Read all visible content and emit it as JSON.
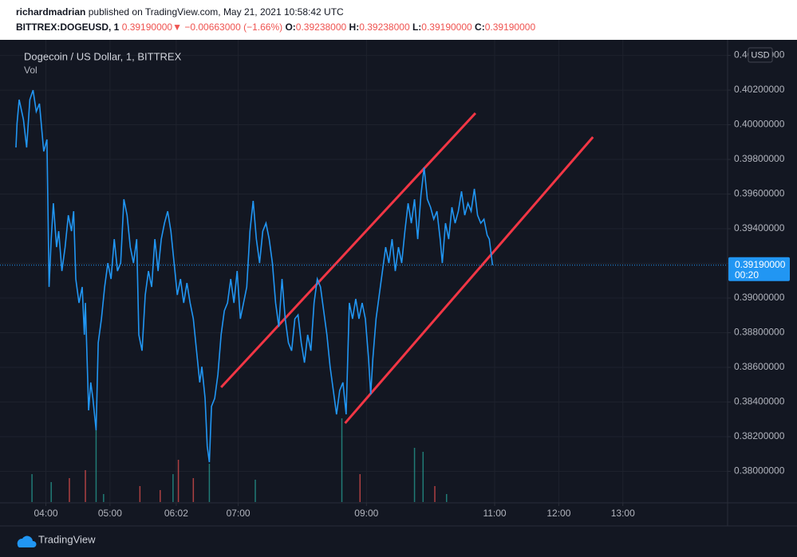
{
  "header": {
    "publisher": "richardmadrian",
    "published": "published on TradingView.com, May 21, 2021 10:58:42 UTC"
  },
  "symbol_bar": {
    "symbol": "BITTREX:DOGEUSD, 1",
    "last": "0.39190000",
    "arrow": "▼",
    "change": "−0.00663000 (−1.66%)",
    "ohlc": [
      {
        "label": "O:",
        "value": "0.39238000"
      },
      {
        "label": "H:",
        "value": "0.39238000"
      },
      {
        "label": "L:",
        "value": "0.39190000"
      },
      {
        "label": "C:",
        "value": "0.39190000"
      }
    ]
  },
  "chart_data": {
    "type": "line",
    "title": "Dogecoin / US Dollar, 1, BITTREX",
    "volume_label": "Vol",
    "currency": "USD",
    "color": "#2196f3",
    "grid": true,
    "x": [
      212,
      213,
      215,
      219,
      222,
      225,
      228,
      231,
      234,
      238,
      241,
      243,
      245,
      247,
      250,
      252,
      255,
      258,
      261,
      264,
      266,
      268,
      271,
      274,
      276,
      277,
      280,
      282,
      284,
      287,
      289,
      292,
      295,
      298,
      301,
      304,
      307,
      310,
      313,
      316,
      319,
      322,
      325,
      327,
      330,
      333,
      336,
      339,
      342,
      345,
      348,
      351,
      354,
      357,
      360,
      363,
      366,
      369,
      372,
      375,
      378,
      381,
      384,
      386,
      389,
      391,
      393,
      395,
      398,
      401,
      404,
      407,
      410,
      413,
      416,
      419,
      422,
      425,
      428,
      431,
      434,
      437,
      440,
      443,
      446,
      449,
      452,
      455,
      458,
      461,
      464,
      467,
      470,
      473,
      476,
      479,
      482,
      485,
      488,
      491,
      494,
      497,
      500,
      503,
      506,
      509,
      512,
      515,
      518,
      521,
      524,
      527,
      530,
      533,
      536,
      539,
      542,
      544,
      546,
      549,
      552,
      555,
      558,
      561,
      564,
      567,
      570,
      573,
      576,
      579,
      582,
      585,
      588,
      591,
      594,
      597,
      600,
      603,
      606,
      609,
      611,
      614,
      617,
      620,
      623,
      626,
      629,
      632,
      635,
      638,
      641,
      644,
      647,
      650,
      653,
      655,
      658
    ],
    "values": [
      0.39869,
      0.40007,
      0.40145,
      0.4003,
      0.39869,
      0.40145,
      0.402,
      0.40076,
      0.40122,
      0.39846,
      0.39915,
      0.39064,
      0.3934,
      0.39547,
      0.39294,
      0.39386,
      0.39156,
      0.39294,
      0.39478,
      0.39386,
      0.39501,
      0.3911,
      0.38972,
      0.39064,
      0.38788,
      0.38972,
      0.38352,
      0.38513,
      0.38421,
      0.38237,
      0.38742,
      0.3888,
      0.39064,
      0.39202,
      0.3911,
      0.3934,
      0.39156,
      0.39202,
      0.3957,
      0.39478,
      0.39294,
      0.39202,
      0.3934,
      0.38788,
      0.38696,
      0.39018,
      0.39156,
      0.39064,
      0.3934,
      0.39156,
      0.3934,
      0.39432,
      0.39501,
      0.39386,
      0.39202,
      0.39018,
      0.3911,
      0.38972,
      0.39087,
      0.38972,
      0.3888,
      0.38696,
      0.38513,
      0.38604,
      0.38421,
      0.38145,
      0.38053,
      0.38375,
      0.38421,
      0.38559,
      0.38788,
      0.38926,
      0.38972,
      0.3911,
      0.38972,
      0.39156,
      0.3888,
      0.38972,
      0.39064,
      0.39386,
      0.39561,
      0.3934,
      0.39202,
      0.39386,
      0.39432,
      0.3934,
      0.39202,
      0.38972,
      0.38834,
      0.3911,
      0.3888,
      0.38742,
      0.38696,
      0.3888,
      0.38903,
      0.38742,
      0.38627,
      0.38788,
      0.38696,
      0.38972,
      0.3911,
      0.39064,
      0.38926,
      0.38788,
      0.38604,
      0.38467,
      0.38329,
      0.38467,
      0.38513,
      0.38329,
      0.38972,
      0.3888,
      0.38995,
      0.3888,
      0.38972,
      0.3888,
      0.3865,
      0.38444,
      0.3865,
      0.3888,
      0.39018,
      0.39156,
      0.39294,
      0.39202,
      0.3934,
      0.39156,
      0.39294,
      0.39202,
      0.39386,
      0.39547,
      0.39432,
      0.3957,
      0.3934,
      0.39593,
      0.39754,
      0.3957,
      0.39524,
      0.39455,
      0.39501,
      0.3934,
      0.39202,
      0.39432,
      0.3934,
      0.39524,
      0.39432,
      0.39501,
      0.39616,
      0.39478,
      0.39547,
      0.39501,
      0.3963,
      0.39478,
      0.39432,
      0.39455,
      0.39363,
      0.3934,
      0.3919
    ],
    "xlim": [
      212,
      878
    ],
    "xticks": [
      {
        "value": 240,
        "label": "04:00"
      },
      {
        "value": 300,
        "label": "05:00"
      },
      {
        "value": 362,
        "label": "06:02"
      },
      {
        "value": 420,
        "label": "07:00"
      },
      {
        "value": 540,
        "label": "09:00"
      },
      {
        "value": 660,
        "label": "11:00"
      },
      {
        "value": 720,
        "label": "12:00"
      },
      {
        "value": 780,
        "label": "13:00"
      }
    ],
    "ylim": [
      0.37823,
      0.40467
    ],
    "yticks": [
      {
        "value": 0.38,
        "label": "0.38000000"
      },
      {
        "value": 0.382,
        "label": "0.38200000"
      },
      {
        "value": 0.384,
        "label": "0.38400000"
      },
      {
        "value": 0.386,
        "label": "0.38600000"
      },
      {
        "value": 0.388,
        "label": "0.38800000"
      },
      {
        "value": 0.39,
        "label": "0.39000000"
      },
      {
        "value": 0.392,
        "label": "0.39200000"
      },
      {
        "value": 0.394,
        "label": "0.39400000"
      },
      {
        "value": 0.396,
        "label": "0.39600000"
      },
      {
        "value": 0.398,
        "label": "0.39800000"
      },
      {
        "value": 0.4,
        "label": "0.40000000"
      },
      {
        "value": 0.402,
        "label": "0.40200000"
      },
      {
        "value": 0.404,
        "label": "0.40400000"
      }
    ],
    "last_price_label": "0.39190000",
    "countdown": "00:20",
    "trend_lines": {
      "color": "#f23645",
      "lines": [
        {
          "x": [
            404,
            642
          ],
          "y": [
            0.38485,
            0.40067
          ]
        },
        {
          "x": [
            520,
            752
          ],
          "y": [
            0.38278,
            0.39929
          ]
        }
      ]
    },
    "volume": {
      "ylim": [
        0,
        120
      ],
      "x": [
        227,
        245,
        262,
        277,
        287,
        294,
        328,
        347,
        359,
        364,
        378,
        393,
        436,
        517,
        534,
        585,
        593,
        604,
        615
      ],
      "values": [
        35,
        25,
        30,
        40,
        90,
        10,
        20,
        15,
        35,
        53,
        30,
        48,
        28,
        105,
        35,
        68,
        63,
        20,
        10
      ],
      "colors": [
        "#26a69a",
        "#26a69a",
        "#ef5350",
        "#ef5350",
        "#26a69a",
        "#26a69a",
        "#ef5350",
        "#ef5350",
        "#26a69a",
        "#ef5350",
        "#ef5350",
        "#26a69a",
        "#26a69a",
        "#26a69a",
        "#ef5350",
        "#26a69a",
        "#26a69a",
        "#ef5350",
        "#26a69a"
      ]
    }
  },
  "footer": {
    "brand": "TradingView"
  }
}
